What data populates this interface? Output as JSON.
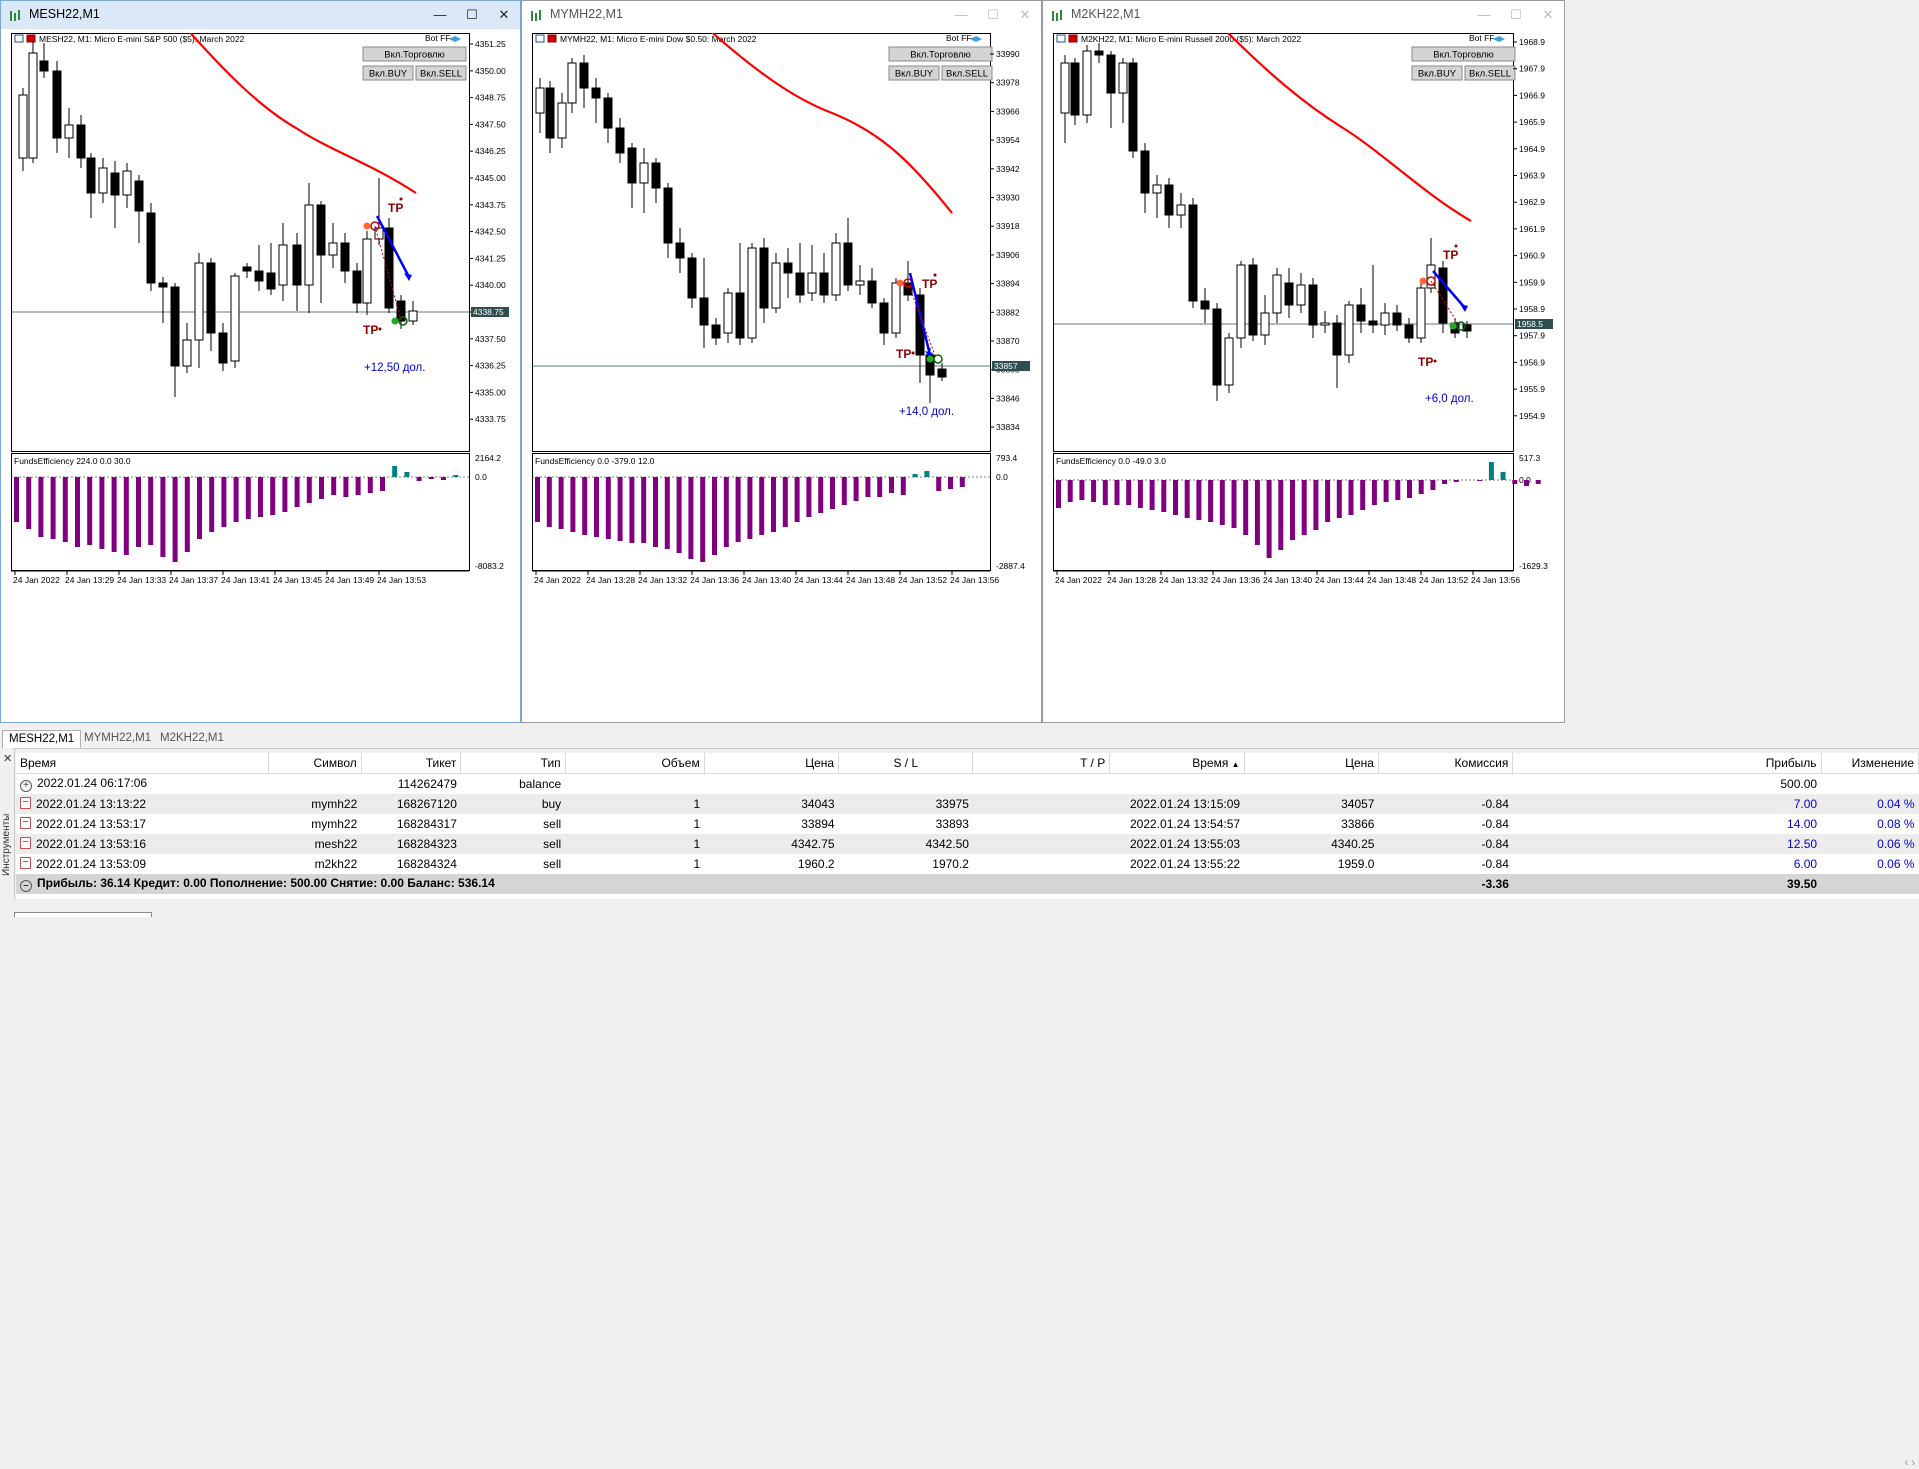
{
  "windows": [
    {
      "id": "w1",
      "active": true,
      "title": "MESH22,M1",
      "info": "MESH22, M1:  Micro E-mini S&P 500 ($5): March 2022",
      "bot_label": "Bot FF",
      "btn_trade": "Вкл.Торговлю",
      "btn_buy": "Вкл.BUY",
      "btn_sell": "Вкл.SELL",
      "price_labels": [
        "4351.25",
        "4350.00",
        "4348.75",
        "4347.50",
        "4346.25",
        "4345.00",
        "4343.75",
        "4342.50",
        "4341.25",
        "4340.00",
        "4338.75",
        "4337.50",
        "4336.25",
        "4335.00",
        "4333.75"
      ],
      "current_price": "4338.75",
      "profit_label": "+12,50 дол.",
      "indicator_label": "FundsEfficiency 224.0 0.0 30.0",
      "indicator_top": "2164.2",
      "indicator_zero": "0.0",
      "indicator_bottom": "-8083.2",
      "time_labels": [
        "24 Jan 2022",
        "24 Jan 13:29",
        "24 Jan 13:33",
        "24 Jan 13:37",
        "24 Jan 13:41",
        "24 Jan 13:45",
        "24 Jan 13:49",
        "24 Jan 13:53"
      ],
      "tp_labels": [
        "TP",
        "TP"
      ]
    },
    {
      "id": "w2",
      "active": false,
      "title": "MYMH22,M1",
      "info": "MYMH22, M1:  Micro E-mini Dow $0.50: March 2022",
      "bot_label": "Bot FF",
      "btn_trade": "Вкл.Торговлю",
      "btn_buy": "Вкл.BUY",
      "btn_sell": "Вкл.SELL",
      "price_labels": [
        "33990",
        "33978",
        "33966",
        "33954",
        "33942",
        "33930",
        "33918",
        "33906",
        "33894",
        "33882",
        "33870",
        "33858",
        "33846",
        "33834"
      ],
      "current_price": "33857",
      "profit_label": "+14,0 дол.",
      "indicator_label": "FundsEfficiency 0.0 -379.0 12.0",
      "indicator_top": "793.4",
      "indicator_zero": "0.0",
      "indicator_bottom": "-2887.4",
      "time_labels": [
        "24 Jan 2022",
        "24 Jan 13:28",
        "24 Jan 13:32",
        "24 Jan 13:36",
        "24 Jan 13:40",
        "24 Jan 13:44",
        "24 Jan 13:48",
        "24 Jan 13:52",
        "24 Jan 13:56"
      ],
      "tp_labels": [
        "TP",
        "TP"
      ]
    },
    {
      "id": "w3",
      "active": false,
      "title": "M2KH22,M1",
      "info": "M2KH22, M1:  Micro E-mini Russell 2000 ($5): March 2022",
      "bot_label": "Bot FF",
      "btn_trade": "Вкл.Торговлю",
      "btn_buy": "Вкл.BUY",
      "btn_sell": "Вкл.SELL",
      "price_labels": [
        "1968.9",
        "1967.9",
        "1966.9",
        "1965.9",
        "1964.9",
        "1963.9",
        "1962.9",
        "1961.9",
        "1960.9",
        "1959.9",
        "1958.9",
        "1957.9",
        "1956.9",
        "1955.9",
        "1954.9"
      ],
      "current_price": "1958.5",
      "profit_label": "+6,0 дол.",
      "indicator_label": "FundsEfficiency 0.0 -49.0 3.0",
      "indicator_top": "517.3",
      "indicator_zero": "0.0",
      "indicator_bottom": "-1629.3",
      "time_labels": [
        "24 Jan 2022",
        "24 Jan 13:28",
        "24 Jan 13:32",
        "24 Jan 13:36",
        "24 Jan 13:40",
        "24 Jan 13:44",
        "24 Jan 13:48",
        "24 Jan 13:52",
        "24 Jan 13:56"
      ],
      "tp_labels": [
        "TP",
        "TP"
      ]
    }
  ],
  "chart_tabs": [
    "MESH22,M1",
    "MYMH22,M1",
    "M2KH22,M1"
  ],
  "toolbox_label": "Инструменты",
  "table": {
    "headers": [
      "Время",
      "Символ",
      "Тикет",
      "Тип",
      "Объем",
      "Цена",
      "S / L",
      "T / P",
      "Время",
      "Цена",
      "Комиссия",
      "Прибыль",
      "Изменение"
    ],
    "rows": [
      {
        "time": "2022.01.24 06:17:06",
        "symbol": "",
        "ticket": "114262479",
        "type": "balance",
        "volume": "",
        "price": "",
        "sl": "",
        "tp": "",
        "time2": "",
        "price2": "",
        "commission": "",
        "profit": "500.00",
        "change": ""
      },
      {
        "time": "2022.01.24 13:13:22",
        "symbol": "mymh22",
        "ticket": "168267120",
        "type": "buy",
        "volume": "1",
        "price": "34043",
        "sl": "33975",
        "tp": "",
        "time2": "2022.01.24 13:15:09",
        "price2": "34057",
        "commission": "-0.84",
        "profit": "7.00",
        "change": "0.04 %"
      },
      {
        "time": "2022.01.24 13:53:17",
        "symbol": "mymh22",
        "ticket": "168284317",
        "type": "sell",
        "volume": "1",
        "price": "33894",
        "sl": "33893",
        "tp": "",
        "time2": "2022.01.24 13:54:57",
        "price2": "33866",
        "commission": "-0.84",
        "profit": "14.00",
        "change": "0.08 %"
      },
      {
        "time": "2022.01.24 13:53:16",
        "symbol": "mesh22",
        "ticket": "168284323",
        "type": "sell",
        "volume": "1",
        "price": "4342.75",
        "sl": "4342.50",
        "tp": "",
        "time2": "2022.01.24 13:55:03",
        "price2": "4340.25",
        "commission": "-0.84",
        "profit": "12.50",
        "change": "0.06 %"
      },
      {
        "time": "2022.01.24 13:53:09",
        "symbol": "m2kh22",
        "ticket": "168284324",
        "type": "sell",
        "volume": "1",
        "price": "1960.2",
        "sl": "1970.2",
        "tp": "",
        "time2": "2022.01.24 13:55:22",
        "price2": "1959.0",
        "commission": "-0.84",
        "profit": "6.00",
        "change": "0.06 %"
      }
    ],
    "total": {
      "text": "Прибыль: 36.14  Кредит: 0.00  Пополнение: 500.00  Снятие: 0.00  Баланс: 536.14",
      "commission": "-3.36",
      "profit": "39.50"
    }
  },
  "colors": {
    "ma_line": "#ff0000",
    "arrow": "#0000ff",
    "histogram": "#800080",
    "histogram_pos": "#008080",
    "tp_text": "#8b0000",
    "profit_text": "#0000cc"
  }
}
